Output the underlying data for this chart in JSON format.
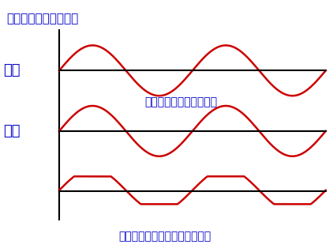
{
  "title": "増幅器入出力端の波形",
  "label_input": "入力",
  "label_output": "出力",
  "text_middle": "同相にするのがポイント",
  "text_bottom": "増幅率が高すぎると波形が歪む",
  "text_color": "#0000cc",
  "wave_color": "#cc0000",
  "line_color": "#000000",
  "bg_color": "#ffffff",
  "axis_color": "#000000",
  "fig_width": 4.17,
  "fig_height": 3.19,
  "dpi": 100
}
